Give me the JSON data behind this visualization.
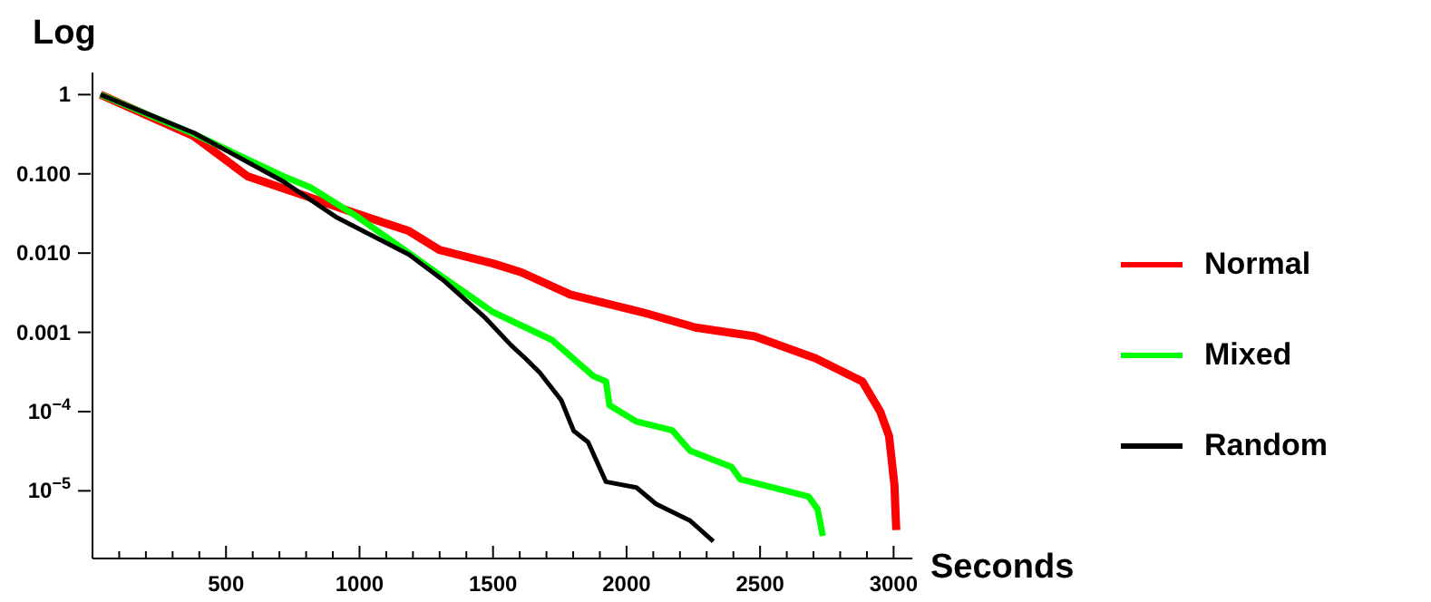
{
  "chart_data": {
    "type": "line",
    "xlabel": "Seconds",
    "ylabel": "Log",
    "log": "y",
    "xlim": [
      0,
      3070
    ],
    "ylim": [
      1.4e-06,
      1.9
    ],
    "xticks": [
      {
        "value": 100,
        "label": null
      },
      {
        "value": 200,
        "label": null
      },
      {
        "value": 300,
        "label": null
      },
      {
        "value": 400,
        "label": null
      },
      500,
      {
        "value": 600,
        "label": null
      },
      {
        "value": 700,
        "label": null
      },
      {
        "value": 800,
        "label": null
      },
      {
        "value": 900,
        "label": null
      },
      1000,
      {
        "value": 1100,
        "label": null
      },
      {
        "value": 1200,
        "label": null
      },
      {
        "value": 1300,
        "label": null
      },
      {
        "value": 1400,
        "label": null
      },
      1500,
      {
        "value": 1600,
        "label": null
      },
      {
        "value": 1700,
        "label": null
      },
      {
        "value": 1800,
        "label": null
      },
      {
        "value": 1900,
        "label": null
      },
      2000,
      {
        "value": 2100,
        "label": null
      },
      {
        "value": 2200,
        "label": null
      },
      {
        "value": 2300,
        "label": null
      },
      {
        "value": 2400,
        "label": null
      },
      2500,
      {
        "value": 2600,
        "label": null
      },
      {
        "value": 2700,
        "label": null
      },
      {
        "value": 2800,
        "label": null
      },
      {
        "value": 2900,
        "label": null
      },
      3000
    ],
    "yticks": [
      1,
      {
        "value": 0.1,
        "label": "0.100"
      },
      {
        "value": 0.01,
        "label": "0.010"
      },
      0.001,
      {
        "value": 0.0001,
        "label": "10$^{−4}$"
      },
      {
        "value": 1e-05,
        "label": "10$^{−5}$"
      }
    ],
    "grid": false,
    "legend": "right",
    "marker": "none",
    "line_style": "solid",
    "series": [
      {
        "name": "Normal",
        "color": "#ff0000",
        "x": [
          30,
          379,
          581,
          782,
          983,
          1185,
          1299,
          1500,
          1607,
          1789,
          2057,
          2258,
          2480,
          2708,
          2883,
          2950,
          2983,
          3003,
          3010
        ],
        "values": [
          1,
          0.3,
          0.093,
          0.055,
          0.032,
          0.019,
          0.011,
          0.0074,
          0.0057,
          0.003,
          0.0018,
          0.00115,
          0.00089,
          0.00047,
          0.00024,
          0.0001,
          4.9e-05,
          1.2e-05,
          3.2e-06
        ]
      },
      {
        "name": "Mixed",
        "color": "#00ff00",
        "x": [
          30,
          379,
          715,
          815,
          997,
          1319,
          1500,
          1721,
          1876,
          1923,
          1936,
          2037,
          2171,
          2238,
          2393,
          2426,
          2681,
          2715,
          2735
        ],
        "values": [
          1,
          0.32,
          0.093,
          0.068,
          0.028,
          0.0048,
          0.0018,
          0.0008,
          0.00028,
          0.00024,
          0.00012,
          7.5e-05,
          5.8e-05,
          3.2e-05,
          2e-05,
          1.4e-05,
          8.5e-06,
          5.9e-06,
          2.7e-06
        ]
      },
      {
        "name": "Random",
        "color": "#000000",
        "x": [
          30,
          379,
          715,
          916,
          1185,
          1319,
          1473,
          1567,
          1621,
          1675,
          1755,
          1802,
          1856,
          1923,
          2037,
          2111,
          2238,
          2325
        ],
        "values": [
          1,
          0.33,
          0.08,
          0.028,
          0.0096,
          0.0044,
          0.0015,
          0.00069,
          0.00047,
          0.00031,
          0.00014,
          5.7e-05,
          4.1e-05,
          1.3e-05,
          1.1e-05,
          6.8e-06,
          4.2e-06,
          2.3e-06
        ]
      }
    ]
  }
}
